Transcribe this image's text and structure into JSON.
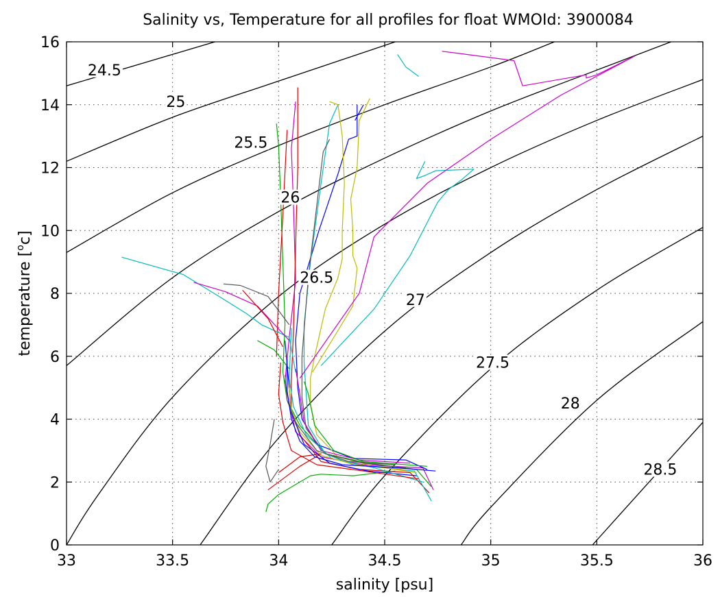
{
  "chart_data": {
    "type": "line",
    "title": "Salinity vs, Temperature for all profiles for float WMOId: 3900084",
    "xlabel": "salinity [psu]",
    "ylabel_main": "temperature [",
    "ylabel_sup": "o",
    "ylabel_end": "c]",
    "xlim": [
      33,
      36
    ],
    "ylim": [
      0,
      16
    ],
    "x_ticks": [
      "33",
      "33.5",
      "34",
      "34.5",
      "35",
      "35.5",
      "36"
    ],
    "y_ticks": [
      "0",
      "2",
      "4",
      "6",
      "8",
      "10",
      "12",
      "14",
      "16"
    ],
    "grid": true,
    "isopycnals": [
      {
        "label": "24.5",
        "label_at": [
          33.1,
          15.0
        ],
        "points": [
          [
            33.0,
            14.6
          ],
          [
            33.7,
            16.0
          ]
        ]
      },
      {
        "label": "25",
        "label_at": [
          33.47,
          14.0
        ],
        "points": [
          [
            33.0,
            12.2
          ],
          [
            33.5,
            13.6
          ],
          [
            34.0,
            14.75
          ],
          [
            34.55,
            16.0
          ]
        ]
      },
      {
        "label": "25.5",
        "label_at": [
          33.79,
          12.7
        ],
        "points": [
          [
            33.0,
            9.3
          ],
          [
            33.5,
            11.2
          ],
          [
            34.0,
            12.7
          ],
          [
            34.5,
            14.0
          ],
          [
            35.0,
            15.2
          ],
          [
            35.3,
            16.0
          ]
        ]
      },
      {
        "label": "26",
        "label_at": [
          34.01,
          10.95
        ],
        "points": [
          [
            33.0,
            5.7
          ],
          [
            33.5,
            8.5
          ],
          [
            34.0,
            10.6
          ],
          [
            34.5,
            12.3
          ],
          [
            35.0,
            13.8
          ],
          [
            35.5,
            15.1
          ],
          [
            35.85,
            16.0
          ]
        ]
      },
      {
        "label": "26.5",
        "label_at": [
          34.1,
          8.4
        ],
        "points": [
          [
            33.0,
            0.0
          ],
          [
            33.15,
            1.6
          ],
          [
            33.5,
            4.7
          ],
          [
            34.0,
            7.9
          ],
          [
            34.5,
            10.2
          ],
          [
            35.0,
            12.0
          ],
          [
            35.5,
            13.5
          ],
          [
            36.0,
            14.8
          ]
        ]
      },
      {
        "label": "27",
        "label_at": [
          34.6,
          7.7
        ],
        "points": [
          [
            33.63,
            0.0
          ],
          [
            34.0,
            3.4
          ],
          [
            34.5,
            6.8
          ],
          [
            35.0,
            9.3
          ],
          [
            35.5,
            11.3
          ],
          [
            36.0,
            13.0
          ]
        ]
      },
      {
        "label": "27.5",
        "label_at": [
          34.93,
          5.7
        ],
        "points": [
          [
            34.25,
            0.0
          ],
          [
            34.5,
            2.2
          ],
          [
            35.0,
            5.6
          ],
          [
            35.5,
            8.1
          ],
          [
            36.0,
            10.1
          ]
        ]
      },
      {
        "label": "28",
        "label_at": [
          35.33,
          4.4
        ],
        "points": [
          [
            34.86,
            0.0
          ],
          [
            35.0,
            1.2
          ],
          [
            35.5,
            4.6
          ],
          [
            36.0,
            7.1
          ]
        ]
      },
      {
        "label": "28.5",
        "label_at": [
          35.72,
          2.3
        ],
        "points": [
          [
            35.48,
            0.0
          ],
          [
            35.8,
            2.4
          ],
          [
            36.0,
            3.9
          ]
        ]
      }
    ],
    "series": [
      {
        "color": "#cc00cc",
        "points": [
          [
            34.73,
            1.75
          ],
          [
            34.68,
            2.45
          ],
          [
            34.4,
            2.55
          ],
          [
            34.2,
            2.8
          ],
          [
            34.08,
            3.6
          ],
          [
            34.05,
            4.5
          ],
          [
            34.03,
            5.2
          ],
          [
            34.05,
            6.6
          ],
          [
            34.08,
            8.4
          ],
          [
            34.07,
            10.8
          ],
          [
            34.06,
            12.6
          ],
          [
            34.08,
            14.1
          ]
        ]
      },
      {
        "color": "#00aa00",
        "points": [
          [
            34.72,
            1.85
          ],
          [
            34.65,
            2.4
          ],
          [
            34.42,
            2.6
          ],
          [
            34.22,
            2.9
          ],
          [
            34.1,
            3.8
          ],
          [
            34.04,
            4.6
          ],
          [
            34.02,
            5.5
          ],
          [
            34.03,
            7.0
          ],
          [
            34.02,
            9.0
          ],
          [
            34.01,
            11.0
          ],
          [
            34.0,
            12.7
          ],
          [
            33.99,
            13.4
          ]
        ]
      },
      {
        "color": "#00aa00",
        "points": [
          [
            34.55,
            2.35
          ],
          [
            34.35,
            2.2
          ],
          [
            34.2,
            2.25
          ],
          [
            34.15,
            2.2
          ],
          [
            34.0,
            1.6
          ],
          [
            33.95,
            1.3
          ],
          [
            33.94,
            1.05
          ]
        ]
      },
      {
        "color": "#0000ff",
        "points": [
          [
            34.7,
            2.4
          ],
          [
            34.6,
            2.7
          ],
          [
            34.35,
            2.75
          ],
          [
            34.18,
            3.2
          ],
          [
            34.11,
            4.0
          ],
          [
            34.09,
            5.0
          ],
          [
            34.08,
            6.5
          ],
          [
            34.1,
            8.0
          ],
          [
            34.19,
            10.0
          ],
          [
            34.28,
            11.8
          ],
          [
            34.33,
            12.9
          ],
          [
            34.37,
            13.0
          ],
          [
            34.37,
            14.0
          ]
        ]
      },
      {
        "color": "#0000ff",
        "points": [
          [
            34.4,
            14.0
          ],
          [
            34.36,
            13.5
          ]
        ]
      },
      {
        "color": "#dd0000",
        "points": [
          [
            34.71,
            1.65
          ],
          [
            34.62,
            2.3
          ],
          [
            34.38,
            2.4
          ],
          [
            34.2,
            2.65
          ],
          [
            34.1,
            3.5
          ],
          [
            34.06,
            4.3
          ],
          [
            34.06,
            5.2
          ],
          [
            34.07,
            6.8
          ],
          [
            34.08,
            9.5
          ],
          [
            34.09,
            12.0
          ],
          [
            34.09,
            14.55
          ]
        ]
      },
      {
        "color": "#dd0000",
        "points": [
          [
            34.04,
            13.2
          ],
          [
            34.02,
            10.5
          ],
          [
            34.0,
            8.0
          ],
          [
            33.99,
            6.0
          ]
        ]
      },
      {
        "color": "#dd0000",
        "points": [
          [
            33.95,
            1.75
          ],
          [
            34.1,
            2.5
          ],
          [
            34.2,
            2.9
          ],
          [
            34.1,
            2.8
          ],
          [
            34.0,
            2.3
          ]
        ]
      },
      {
        "color": "#00bbbb",
        "points": [
          [
            34.72,
            1.4
          ],
          [
            34.64,
            2.35
          ],
          [
            34.35,
            2.55
          ],
          [
            34.22,
            2.9
          ],
          [
            34.14,
            3.8
          ],
          [
            34.13,
            4.8
          ],
          [
            34.12,
            5.8
          ],
          [
            34.12,
            7.0
          ],
          [
            34.15,
            9.0
          ],
          [
            34.2,
            11.5
          ],
          [
            34.24,
            13.4
          ],
          [
            34.28,
            14.0
          ]
        ]
      },
      {
        "color": "#00bbbb",
        "points": [
          [
            34.2,
            5.7
          ],
          [
            34.45,
            7.5
          ],
          [
            34.62,
            9.2
          ],
          [
            34.75,
            10.9
          ],
          [
            34.8,
            11.3
          ],
          [
            34.86,
            11.6
          ],
          [
            34.92,
            11.95
          ],
          [
            34.74,
            11.9
          ],
          [
            34.69,
            11.75
          ],
          [
            34.65,
            11.65
          ],
          [
            34.69,
            12.2
          ]
        ]
      },
      {
        "color": "#00bbbb",
        "points": [
          [
            33.26,
            9.15
          ],
          [
            33.55,
            8.6
          ],
          [
            33.72,
            7.9
          ],
          [
            33.85,
            7.35
          ],
          [
            33.92,
            7.0
          ],
          [
            34.05,
            6.6
          ],
          [
            34.08,
            5.5
          ]
        ]
      },
      {
        "color": "#00bbbb",
        "points": [
          [
            34.56,
            15.6
          ],
          [
            34.6,
            15.2
          ],
          [
            34.66,
            14.9
          ]
        ]
      },
      {
        "color": "#bbbb00",
        "points": [
          [
            34.65,
            2.3
          ],
          [
            34.45,
            2.5
          ],
          [
            34.28,
            2.8
          ],
          [
            34.18,
            3.5
          ],
          [
            34.15,
            4.5
          ],
          [
            34.15,
            5.3
          ],
          [
            34.17,
            6.0
          ],
          [
            34.22,
            7.5
          ],
          [
            34.28,
            8.5
          ],
          [
            34.3,
            9.1
          ],
          [
            34.3,
            10.0
          ],
          [
            34.31,
            11.5
          ],
          [
            34.3,
            13.0
          ],
          [
            34.28,
            14.0
          ],
          [
            34.24,
            14.1
          ]
        ]
      },
      {
        "color": "#bbbb00",
        "points": [
          [
            34.16,
            5.5
          ],
          [
            34.26,
            6.6
          ],
          [
            34.35,
            7.6
          ],
          [
            34.37,
            8.8
          ],
          [
            34.35,
            9.2
          ],
          [
            34.35,
            10.0
          ],
          [
            34.34,
            11.0
          ],
          [
            34.37,
            12.0
          ],
          [
            34.38,
            13.5
          ],
          [
            34.43,
            14.2
          ]
        ]
      },
      {
        "color": "#555555",
        "points": [
          [
            34.6,
            2.45
          ],
          [
            34.4,
            2.6
          ],
          [
            34.22,
            2.9
          ],
          [
            34.13,
            3.7
          ],
          [
            34.11,
            4.7
          ],
          [
            34.11,
            6.0
          ],
          [
            34.14,
            8.5
          ],
          [
            34.18,
            10.8
          ],
          [
            34.21,
            12.5
          ],
          [
            34.24,
            12.9
          ]
        ]
      },
      {
        "color": "#555555",
        "points": [
          [
            33.98,
            4.0
          ],
          [
            33.96,
            3.2
          ],
          [
            33.94,
            2.5
          ],
          [
            33.96,
            2.0
          ],
          [
            34.0,
            2.4
          ]
        ]
      },
      {
        "color": "#555555",
        "points": [
          [
            33.74,
            8.3
          ],
          [
            33.82,
            8.25
          ],
          [
            33.95,
            7.9
          ],
          [
            34.05,
            7.0
          ]
        ]
      },
      {
        "color": "#cc00cc",
        "points": [
          [
            34.1,
            5.3
          ],
          [
            34.38,
            8.0
          ],
          [
            34.45,
            9.8
          ],
          [
            34.7,
            11.5
          ],
          [
            35.0,
            12.9
          ],
          [
            35.33,
            14.3
          ],
          [
            35.68,
            15.55
          ],
          [
            35.5,
            14.95
          ],
          [
            35.45,
            14.85
          ],
          [
            35.45,
            14.95
          ],
          [
            35.15,
            14.6
          ],
          [
            35.11,
            15.4
          ],
          [
            34.83,
            15.65
          ],
          [
            34.77,
            15.7
          ]
        ]
      },
      {
        "color": "#cc00cc",
        "points": [
          [
            33.6,
            8.35
          ],
          [
            33.75,
            8.05
          ],
          [
            33.9,
            7.6
          ],
          [
            34.05,
            6.5
          ]
        ]
      },
      {
        "color": "#dd0000",
        "points": [
          [
            33.83,
            8.1
          ],
          [
            33.95,
            7.2
          ],
          [
            34.02,
            6.3
          ]
        ]
      },
      {
        "color": "#00aa00",
        "points": [
          [
            33.9,
            6.5
          ],
          [
            33.98,
            6.2
          ],
          [
            34.05,
            5.6
          ]
        ]
      },
      {
        "color": "#0000ff",
        "points": [
          [
            34.65,
            2.2
          ],
          [
            34.42,
            2.35
          ],
          [
            34.24,
            2.6
          ],
          [
            34.12,
            3.2
          ],
          [
            34.06,
            4.2
          ],
          [
            34.05,
            5.0
          ],
          [
            34.03,
            6.5
          ]
        ]
      },
      {
        "color": "#cc00cc",
        "points": [
          [
            34.62,
            2.6
          ],
          [
            34.38,
            2.7
          ],
          [
            34.2,
            3.0
          ],
          [
            34.12,
            3.9
          ],
          [
            34.1,
            4.8
          ],
          [
            34.08,
            5.6
          ]
        ]
      },
      {
        "color": "#00bbbb",
        "points": [
          [
            34.68,
            2.0
          ],
          [
            34.45,
            2.45
          ],
          [
            34.25,
            2.75
          ],
          [
            34.13,
            3.5
          ],
          [
            34.07,
            4.4
          ],
          [
            34.05,
            5.3
          ],
          [
            34.06,
            6.9
          ]
        ]
      },
      {
        "color": "#00aa00",
        "points": [
          [
            34.7,
            2.5
          ],
          [
            34.4,
            2.65
          ],
          [
            34.26,
            3.0
          ],
          [
            34.17,
            3.8
          ],
          [
            34.14,
            4.8
          ],
          [
            34.12,
            5.2
          ]
        ]
      },
      {
        "color": "#dd0000",
        "points": [
          [
            34.66,
            2.1
          ],
          [
            34.4,
            2.35
          ],
          [
            34.18,
            2.55
          ],
          [
            34.06,
            3.0
          ],
          [
            34.02,
            3.9
          ],
          [
            34.0,
            4.8
          ],
          [
            34.01,
            5.8
          ]
        ]
      },
      {
        "color": "#bbbb00",
        "points": [
          [
            34.58,
            2.4
          ],
          [
            34.36,
            2.55
          ],
          [
            34.2,
            2.85
          ],
          [
            34.1,
            3.6
          ],
          [
            34.06,
            4.3
          ],
          [
            34.05,
            5.0
          ]
        ]
      },
      {
        "color": "#555555",
        "points": [
          [
            34.55,
            2.55
          ],
          [
            34.33,
            2.65
          ],
          [
            34.18,
            3.0
          ],
          [
            34.08,
            3.9
          ],
          [
            34.04,
            4.6
          ],
          [
            34.03,
            5.4
          ]
        ]
      },
      {
        "color": "#0000ff",
        "points": [
          [
            34.74,
            2.35
          ],
          [
            34.56,
            2.45
          ],
          [
            34.3,
            2.55
          ],
          [
            34.17,
            2.8
          ],
          [
            34.1,
            3.3
          ],
          [
            34.06,
            4.0
          ],
          [
            34.04,
            4.9
          ],
          [
            34.04,
            5.9
          ]
        ]
      }
    ]
  }
}
